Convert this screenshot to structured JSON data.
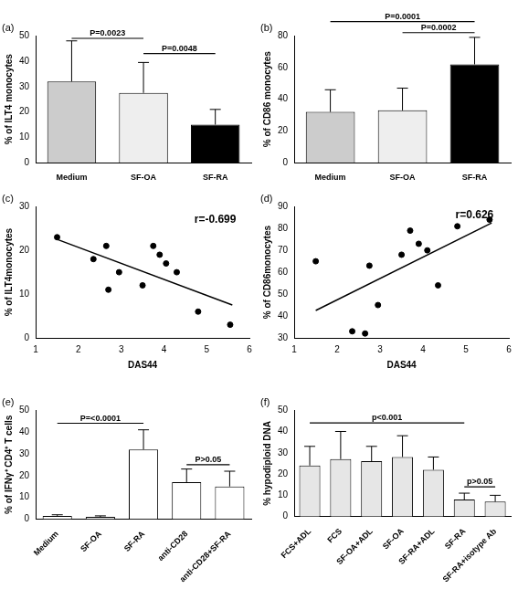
{
  "chart_data": [
    {
      "type": "bar",
      "panel": "(a)",
      "y_label": "% of ILT4 monocytes",
      "categories": [
        "Medium",
        "SF-OA",
        "SF-RA"
      ],
      "values": [
        32,
        27.5,
        15
      ],
      "errors": [
        16,
        12,
        6
      ],
      "colors": [
        "#cccccc",
        "#eeeeee",
        "#000000"
      ],
      "ylim": [
        0,
        50
      ],
      "yticks": [
        0,
        10,
        20,
        30,
        40,
        50
      ],
      "grid": false,
      "annotations": [
        {
          "text": "P=0.0023",
          "from": "Medium",
          "to": "SF-OA",
          "y": 49
        },
        {
          "text": "P=0.0048",
          "from": "SF-OA",
          "to": "SF-RA",
          "y": 43
        }
      ]
    },
    {
      "type": "bar",
      "panel": "(b)",
      "y_label": "% of CD86 monocytes",
      "categories": [
        "Medium",
        "SF-OA",
        "SF-RA"
      ],
      "values": [
        32,
        33,
        62
      ],
      "errors": [
        14,
        14,
        17
      ],
      "colors": [
        "#cccccc",
        "#eeeeee",
        "#000000"
      ],
      "ylim": [
        0,
        80
      ],
      "yticks": [
        0,
        20,
        40,
        60,
        80
      ],
      "grid": false,
      "annotations": [
        {
          "text": "P=0.0001",
          "from": "Medium",
          "to": "SF-RA",
          "y": 89
        },
        {
          "text": "P=0.0002",
          "from": "SF-OA",
          "to": "SF-RA",
          "y": 82
        }
      ]
    },
    {
      "type": "scatter",
      "panel": "(c)",
      "x_label": "DAS44",
      "y_label": "% of ILT4monocytes",
      "x": [
        1.5,
        2.35,
        2.65,
        2.7,
        2.95,
        3.5,
        3.75,
        3.9,
        4.05,
        4.3,
        4.8,
        5.55
      ],
      "values": [
        23,
        18,
        21,
        11,
        15,
        12,
        21,
        19,
        17,
        15,
        6,
        3
      ],
      "fit": {
        "x": [
          1.5,
          5.6
        ],
        "y": [
          22.5,
          7.5
        ]
      },
      "color": "#000000",
      "xlim": [
        1,
        6
      ],
      "xticks": [
        1,
        2,
        3,
        4,
        5,
        6
      ],
      "ylim": [
        0,
        30
      ],
      "yticks": [
        0,
        10,
        20,
        30
      ],
      "grid": false,
      "annotations": [
        {
          "text": "r=-0.699",
          "x": 5.2,
          "y": 27
        }
      ]
    },
    {
      "type": "scatter",
      "panel": "(d)",
      "x_label": "DAS44",
      "y_label": "% of CD86monocytes",
      "x": [
        1.5,
        2.35,
        2.65,
        2.75,
        2.95,
        3.5,
        3.7,
        3.9,
        4.1,
        4.35,
        4.8,
        5.55
      ],
      "values": [
        65,
        33,
        32,
        63,
        45,
        68,
        79,
        73,
        70,
        54,
        81,
        84
      ],
      "fit": {
        "x": [
          1.5,
          5.6
        ],
        "y": [
          42.5,
          82.5
        ]
      },
      "color": "#000000",
      "xlim": [
        1,
        6
      ],
      "xticks": [
        1,
        2,
        3,
        4,
        5,
        6
      ],
      "ylim": [
        30,
        90
      ],
      "yticks": [
        30,
        40,
        50,
        60,
        70,
        80,
        90
      ],
      "grid": false,
      "annotations": [
        {
          "text": "r=0.626",
          "x": 5.2,
          "y": 86
        }
      ]
    },
    {
      "type": "bar",
      "panel": "(e)",
      "y_label": "% of IFNγ⁺ CD4⁺ T cells",
      "categories": [
        "Medium",
        "SF-OA",
        "SF-RA",
        "anti-CD28",
        "anti-CD28+SF-RA"
      ],
      "values": [
        1.5,
        1,
        32,
        17,
        15
      ],
      "errors": [
        0.5,
        0.5,
        9,
        6,
        7
      ],
      "colors": [
        "#ffffff",
        "#ffffff",
        "#ffffff",
        "#ffffff",
        "#ffffff"
      ],
      "ylim": [
        0,
        50
      ],
      "yticks": [
        0,
        10,
        20,
        30,
        40,
        50
      ],
      "grid": false,
      "annotations": [
        {
          "text": "P=<0.0001",
          "from": "Medium",
          "to": "SF-RA",
          "y": 44
        },
        {
          "text": "P>0.05",
          "from": "anti-CD28",
          "to": "anti-CD28+SF-RA",
          "y": 25
        }
      ]
    },
    {
      "type": "bar",
      "panel": "(f)",
      "y_label": "% hypodiploid DNA",
      "categories": [
        "FCS+ADL",
        "FCS",
        "SF-OA+ADL",
        "SF-OA",
        "SF-RA+ADL",
        "SF-RA",
        "SF-RA+isotype Ab"
      ],
      "values": [
        24,
        27,
        26,
        28,
        22,
        8,
        7
      ],
      "errors": [
        9,
        13,
        7,
        10,
        6,
        3,
        3
      ],
      "colors": [
        "#e6e6e6",
        "#e6e6e6",
        "#e6e6e6",
        "#e6e6e6",
        "#e6e6e6",
        "#e6e6e6",
        "#e6e6e6"
      ],
      "ylim": [
        0,
        50
      ],
      "yticks": [
        0,
        10,
        20,
        30,
        40,
        50
      ],
      "grid": false,
      "annotations": [
        {
          "text": "p<0.001",
          "from": "FCS+ADL",
          "to": "SF-RA",
          "y": 44
        },
        {
          "text": "p>0.05",
          "from": "SF-RA",
          "to": "SF-RA+isotype Ab",
          "y": 14
        }
      ]
    }
  ]
}
